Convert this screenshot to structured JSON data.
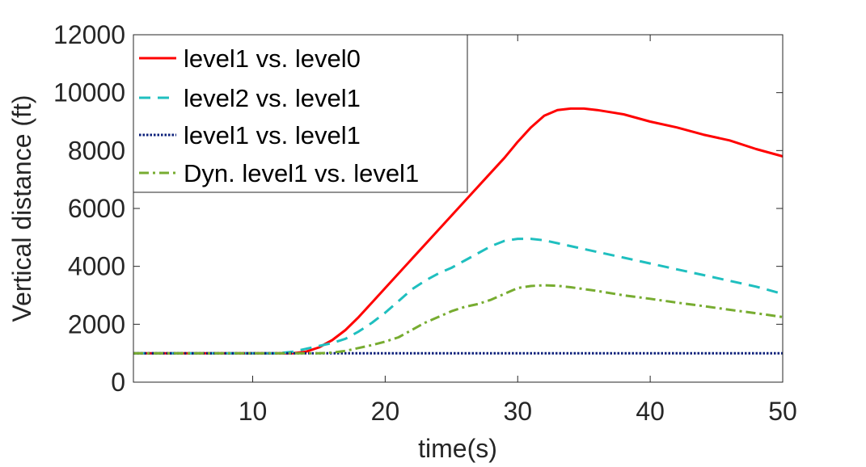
{
  "chart_data": {
    "type": "line",
    "title": "",
    "xlabel": "time(s)",
    "ylabel": "Vertical distance (ft)",
    "xlim": [
      1,
      50
    ],
    "ylim": [
      0,
      12000
    ],
    "xticks": [
      10,
      20,
      30,
      40,
      50
    ],
    "yticks": [
      0,
      2000,
      4000,
      6000,
      8000,
      10000,
      12000
    ],
    "legend_position": "top-left",
    "series": [
      {
        "name": "level1 vs. level0",
        "color": "#ff0000",
        "style": "solid",
        "x": [
          1,
          10,
          13,
          14,
          15,
          16,
          17,
          18,
          19,
          20,
          22,
          24,
          26,
          28,
          29,
          30,
          31,
          32,
          33,
          34,
          35,
          36,
          38,
          40,
          42,
          44,
          46,
          48,
          50
        ],
        "y": [
          1000,
          1000,
          1000,
          1050,
          1200,
          1450,
          1800,
          2250,
          2750,
          3250,
          4250,
          5250,
          6250,
          7250,
          7750,
          8300,
          8800,
          9200,
          9400,
          9450,
          9450,
          9400,
          9250,
          9000,
          8800,
          8550,
          8350,
          8050,
          7800
        ]
      },
      {
        "name": "level2 vs. level1",
        "color": "#1fbfbf",
        "style": "dashed",
        "x": [
          1,
          12,
          13,
          14,
          15,
          16,
          17,
          18,
          19,
          20,
          21,
          22,
          23,
          24,
          25,
          26,
          27,
          28,
          29,
          30,
          31,
          32,
          33,
          34,
          36,
          38,
          40,
          42,
          44,
          46,
          48,
          50
        ],
        "y": [
          1000,
          1000,
          1050,
          1150,
          1250,
          1350,
          1500,
          1750,
          2050,
          2400,
          2800,
          3200,
          3500,
          3750,
          3950,
          4200,
          4450,
          4700,
          4880,
          4950,
          4950,
          4900,
          4800,
          4700,
          4500,
          4300,
          4100,
          3900,
          3700,
          3500,
          3300,
          3050
        ]
      },
      {
        "name": "level1 vs. level1",
        "color": "#0a1f7a",
        "style": "dotted",
        "x": [
          1,
          50
        ],
        "y": [
          1000,
          1000
        ]
      },
      {
        "name": "Dyn. level1 vs. level1",
        "color": "#77ac30",
        "style": "dashdot",
        "x": [
          1,
          15,
          16,
          17,
          18,
          19,
          20,
          21,
          22,
          23,
          24,
          25,
          26,
          27,
          28,
          29,
          30,
          31,
          32,
          33,
          34,
          36,
          38,
          40,
          42,
          44,
          46,
          48,
          50
        ],
        "y": [
          1000,
          1000,
          1020,
          1080,
          1180,
          1280,
          1400,
          1550,
          1800,
          2050,
          2250,
          2450,
          2600,
          2700,
          2850,
          3050,
          3250,
          3320,
          3350,
          3330,
          3280,
          3150,
          3000,
          2880,
          2750,
          2630,
          2500,
          2380,
          2250
        ]
      }
    ]
  }
}
